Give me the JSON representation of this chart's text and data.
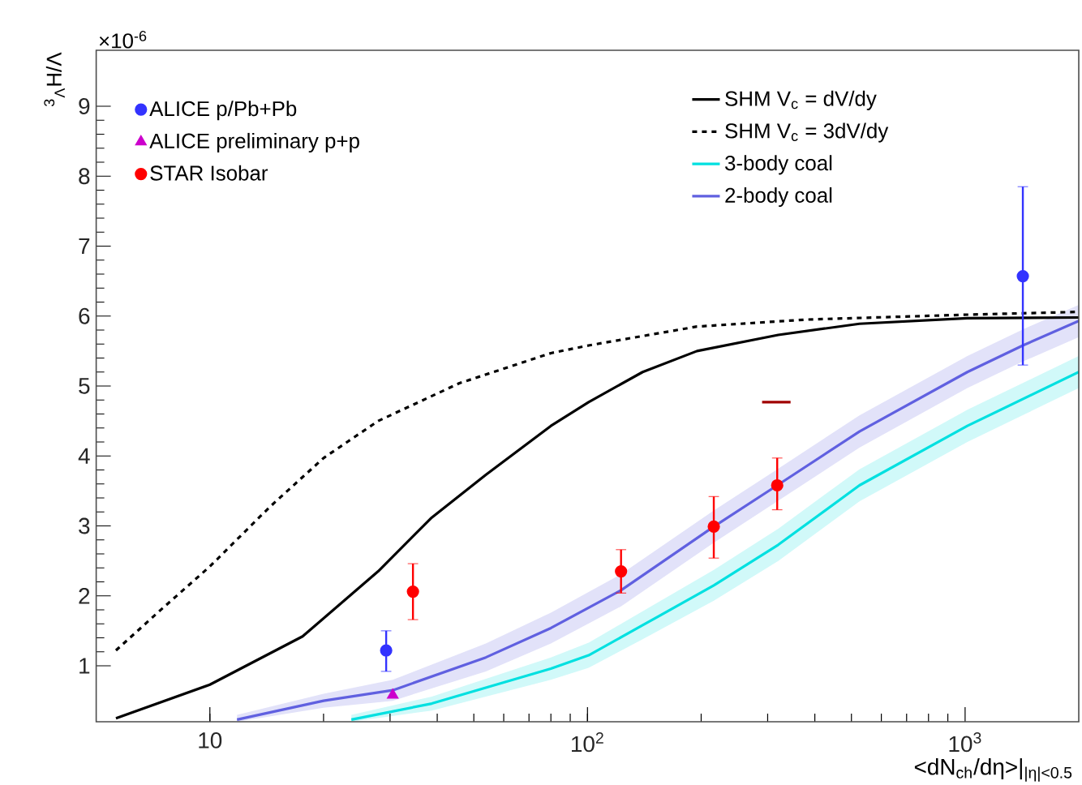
{
  "chart_data": {
    "type": "line",
    "xlabel": "<dN$_{ch}$/dη>|$_{|η|<0.5}$",
    "ylabel": "$^{3}$$_{Λ}$H/Λ",
    "annotations": [
      "×10$^{-6}$"
    ],
    "log": "x",
    "xlim": [
      5,
      2000
    ],
    "ylim": [
      0.2,
      9.8
    ],
    "xticks": [
      10,
      {
        "value": 100,
        "label": "10$^{2}$"
      },
      {
        "value": 1000,
        "label": "10$^{3}$"
      }
    ],
    "yticks": [
      1,
      2,
      3,
      4,
      5,
      6,
      7,
      8,
      9
    ],
    "legend": "top",
    "series": [
      {
        "name": "ALICE p/Pb+Pb",
        "type": "scatter",
        "marker": "circle",
        "color": "#3333ff",
        "x": [
          29.3,
          1422
        ],
        "values": [
          1.22,
          6.57
        ],
        "errors": [
          [
            0.92,
            1.5
          ],
          [
            5.3,
            7.85
          ]
        ]
      },
      {
        "name": "ALICE preliminary p+p",
        "type": "scatter",
        "marker": "triangle",
        "color": "#cc00cc",
        "x": [
          30.5
        ],
        "values": [
          0.58
        ]
      },
      {
        "name": "STAR Isobar",
        "type": "scatter",
        "marker": "circle",
        "color": "#ff0000",
        "x": [
          34.5,
          122.7,
          216,
          318
        ],
        "values": [
          2.06,
          2.35,
          2.99,
          3.58
        ],
        "errors": [
          [
            1.66,
            2.46
          ],
          [
            2.04,
            2.66
          ],
          [
            2.54,
            3.42
          ],
          [
            3.23,
            3.97
          ]
        ]
      },
      {
        "type": "line",
        "line_style": "solid",
        "color": "#a00000",
        "x": [
          290,
          345
        ],
        "values": [
          4.77,
          4.77
        ]
      },
      {
        "name": "SHM V$_{c}$ = dV/dy",
        "line_style": "solid",
        "color": "#000000",
        "x": [
          5.64,
          10,
          17.6,
          27.9,
          38.7,
          53.8,
          80,
          100.7,
          140,
          195,
          320,
          525,
          1014,
          2000
        ],
        "values": [
          0.25,
          0.73,
          1.42,
          2.35,
          3.12,
          3.73,
          4.43,
          4.77,
          5.2,
          5.5,
          5.73,
          5.89,
          5.97,
          5.98
        ]
      },
      {
        "name": "SHM V$_{c}$ = 3dV/dy",
        "line_style": "dashed",
        "color": "#000000",
        "x": [
          5.64,
          7.45,
          10,
          14.4,
          20,
          27.9,
          45.8,
          80,
          100.7,
          195,
          380,
          1014,
          2000
        ],
        "values": [
          1.22,
          1.81,
          2.42,
          3.27,
          3.97,
          4.5,
          5.04,
          5.47,
          5.58,
          5.85,
          5.95,
          6.02,
          6.06
        ]
      },
      {
        "name": "3-body coal",
        "line_style": "solid",
        "color": "#00e0e0",
        "x": [
          23.7,
          38.7,
          80,
          100.7,
          140,
          216,
          320,
          525,
          1014,
          2000
        ],
        "values": [
          0.23,
          0.46,
          0.96,
          1.15,
          1.58,
          2.15,
          2.73,
          3.58,
          4.43,
          5.2
        ],
        "lower": [
          0.2,
          0.36,
          0.8,
          0.97,
          1.38,
          1.93,
          2.5,
          3.35,
          4.2,
          4.97
        ],
        "upper": [
          0.3,
          0.56,
          1.12,
          1.33,
          1.78,
          2.37,
          2.96,
          3.81,
          4.66,
          5.43
        ]
      },
      {
        "name": "2-body coal",
        "line_style": "solid",
        "color": "#6060e0",
        "x": [
          11.8,
          20,
          30.5,
          53.8,
          80,
          122.7,
          216,
          318,
          525,
          1014,
          1422,
          2000
        ],
        "values": [
          0.23,
          0.5,
          0.65,
          1.12,
          1.54,
          2.08,
          2.99,
          3.58,
          4.35,
          5.2,
          5.58,
          5.93
        ],
        "lower": [
          0.2,
          0.4,
          0.5,
          0.92,
          1.32,
          1.85,
          2.76,
          3.35,
          4.12,
          4.97,
          5.35,
          5.7
        ],
        "upper": [
          0.3,
          0.6,
          0.8,
          1.32,
          1.76,
          2.31,
          3.22,
          3.81,
          4.58,
          5.43,
          5.81,
          6.16
        ]
      }
    ]
  }
}
